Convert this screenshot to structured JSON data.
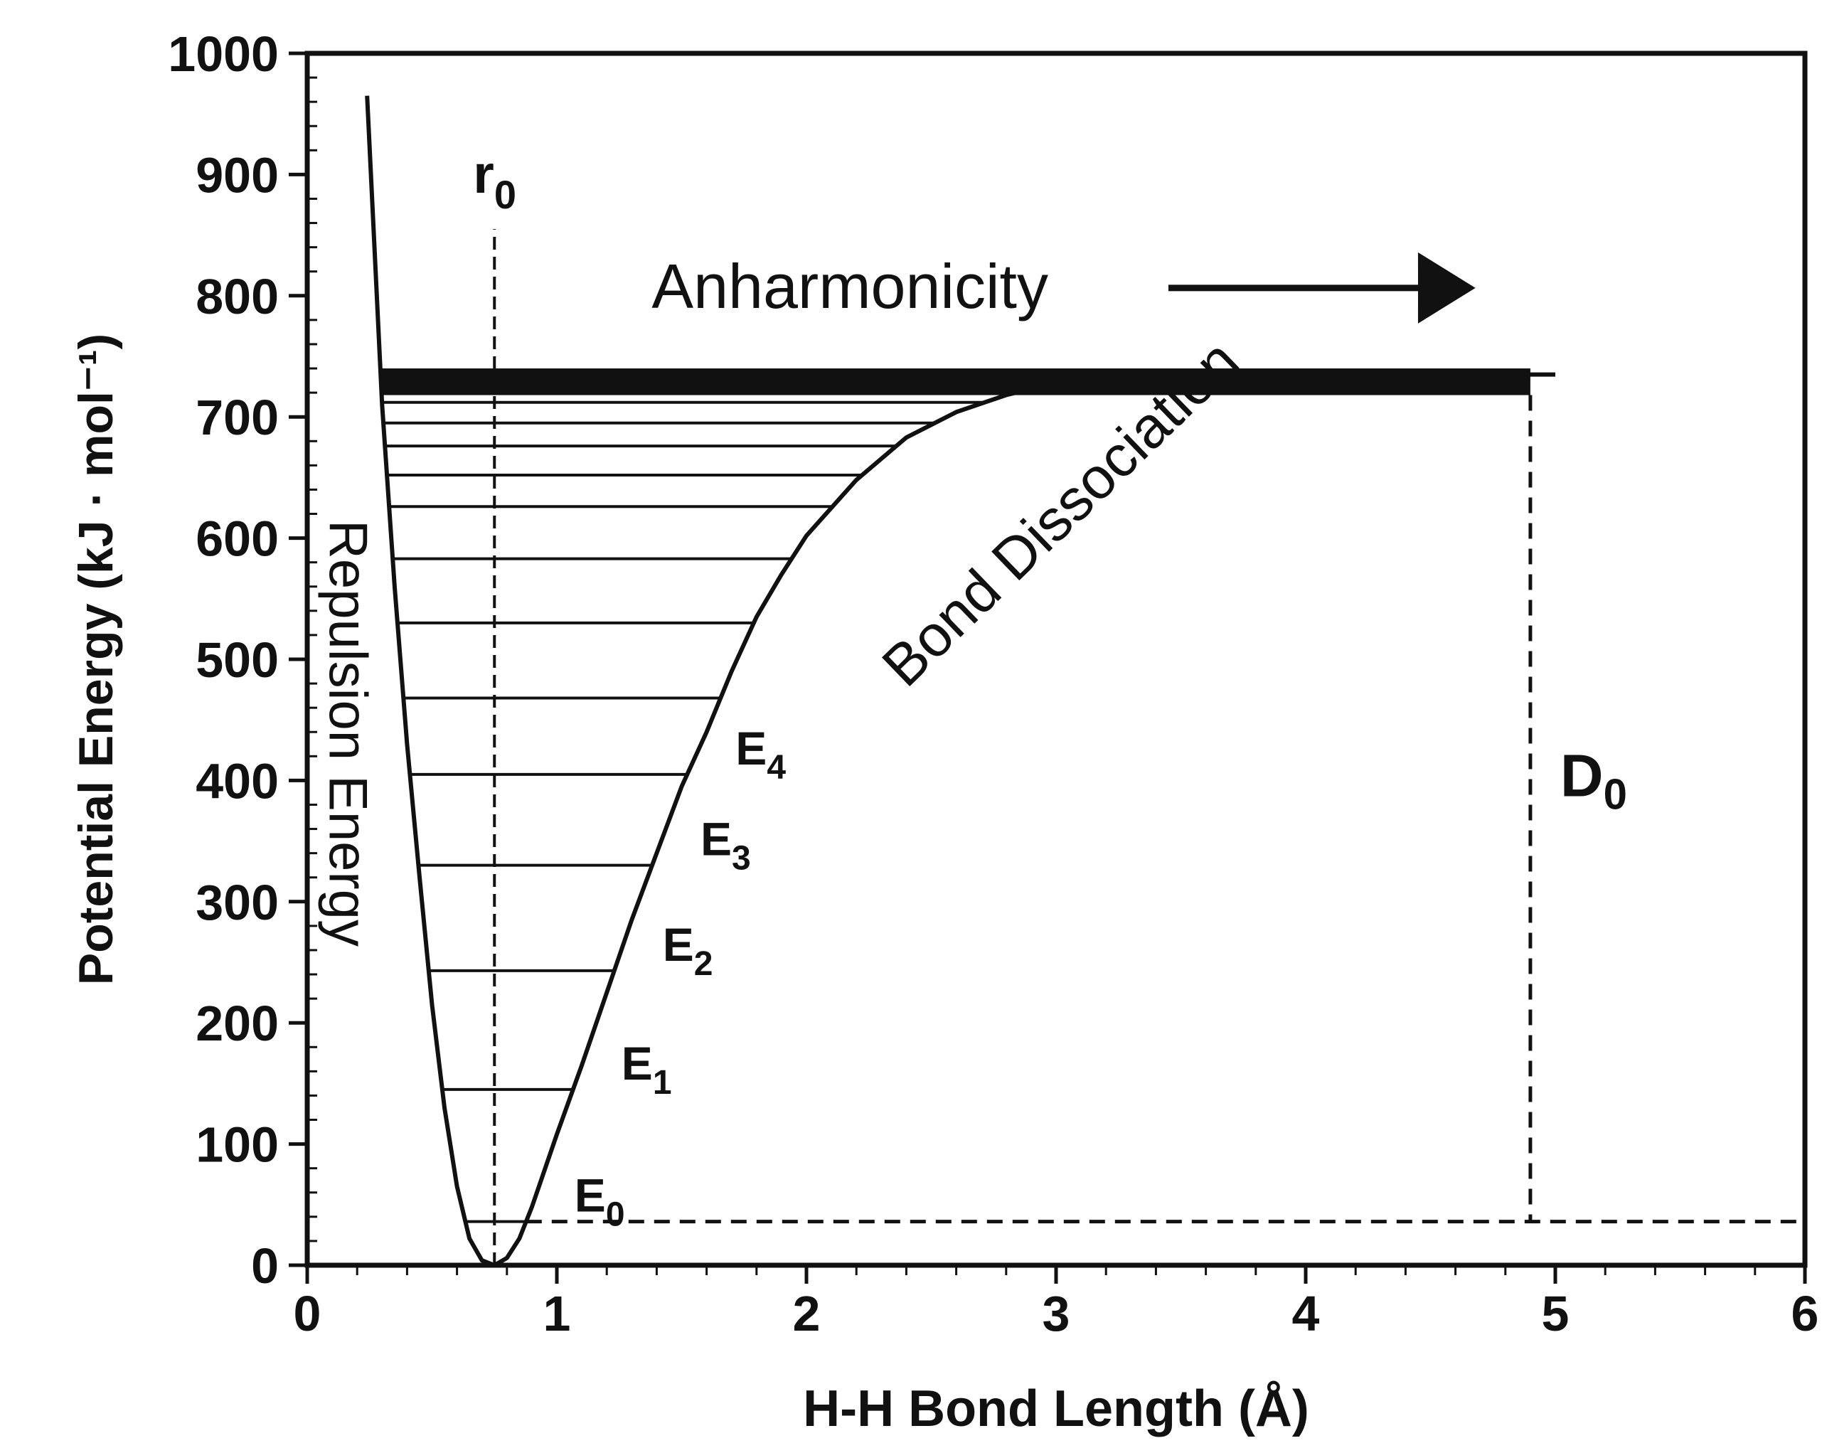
{
  "chart_data": {
    "type": "line",
    "title": "",
    "xlabel": "H-H Bond Length (Å)",
    "ylabel": "Potential Energy (kJ · mol⁻¹)",
    "xlim": [
      0,
      6
    ],
    "ylim": [
      0,
      1000
    ],
    "x_ticks": [
      0,
      1,
      2,
      3,
      4,
      5,
      6
    ],
    "y_ticks": [
      0,
      100,
      200,
      300,
      400,
      500,
      600,
      700,
      800,
      900,
      1000
    ],
    "grid": false,
    "series": [
      {
        "name": "Potential energy curve",
        "x": [
          0.24,
          0.3,
          0.35,
          0.4,
          0.45,
          0.5,
          0.55,
          0.6,
          0.65,
          0.7,
          0.75,
          0.8,
          0.85,
          0.9,
          1.0,
          1.1,
          1.2,
          1.3,
          1.4,
          1.5,
          1.6,
          1.7,
          1.8,
          1.9,
          2.0,
          2.2,
          2.4,
          2.6,
          2.8,
          3.0,
          3.3,
          3.6,
          3.9,
          4.2,
          4.5,
          4.8,
          5.0
        ],
        "y": [
          965,
          710,
          560,
          430,
          320,
          215,
          130,
          65,
          22,
          4,
          0,
          6,
          22,
          48,
          108,
          165,
          225,
          285,
          340,
          395,
          440,
          490,
          535,
          570,
          602,
          648,
          683,
          704,
          718,
          728,
          733,
          735,
          735,
          735,
          735,
          735,
          735
        ]
      }
    ],
    "energy_levels": [
      {
        "label": "E0",
        "sub": "0",
        "y": 36
      },
      {
        "label": "E1",
        "sub": "1",
        "y": 145
      },
      {
        "label": "E2",
        "sub": "2",
        "y": 243
      },
      {
        "label": "E3",
        "sub": "3",
        "y": 330
      },
      {
        "label": "E4",
        "sub": "4",
        "y": 405
      },
      {
        "label": "",
        "sub": "",
        "y": 468
      },
      {
        "label": "",
        "sub": "",
        "y": 530
      },
      {
        "label": "",
        "sub": "",
        "y": 583
      },
      {
        "label": "",
        "sub": "",
        "y": 626
      },
      {
        "label": "",
        "sub": "",
        "y": 652
      },
      {
        "label": "",
        "sub": "",
        "y": 676
      },
      {
        "label": "",
        "sub": "",
        "y": 695
      },
      {
        "label": "",
        "sub": "",
        "y": 712
      }
    ],
    "dissociation_band": {
      "y_low": 718,
      "y_high": 740,
      "x_end": 4.9
    },
    "r0": {
      "label": "r",
      "sub": "0",
      "x": 0.75
    },
    "D0": {
      "label": "D",
      "sub": "0",
      "x": 4.9,
      "y_low": 36
    },
    "annotations": {
      "anharmonicity": "Anharmonicity",
      "repulsion": "Repulsion Energy",
      "dissociation": "Bond Dissociation"
    }
  }
}
